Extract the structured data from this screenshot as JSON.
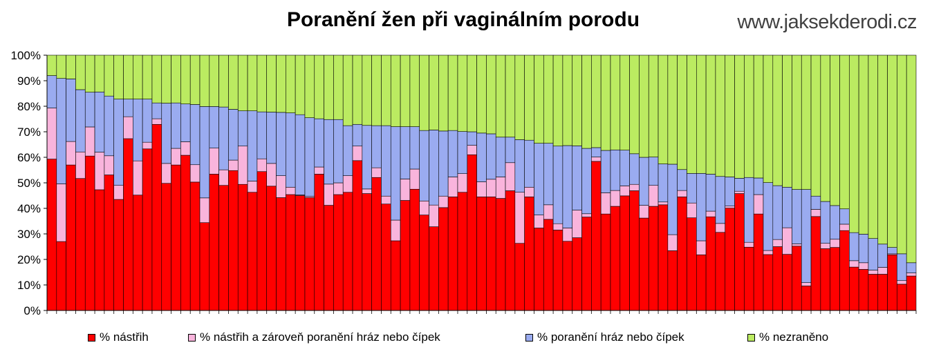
{
  "title": "Poranění žen při vaginálním porodu",
  "site": "www.jaksekderodi.cz",
  "legend": [
    {
      "label": "% nástřih",
      "color": "#ff0000"
    },
    {
      "label": "% nástřih a zároveň poranění hráz nebo čípek",
      "color": "#f9b4dc"
    },
    {
      "label": "% poranění hráz nebo čípek",
      "color": "#9aabf0"
    },
    {
      "label": "% nezraněno",
      "color": "#bbeb61"
    }
  ],
  "chart_data": {
    "type": "bar",
    "stacked": true,
    "ylim": [
      0,
      100
    ],
    "ytick_labels": [
      "0%",
      "10%",
      "20%",
      "30%",
      "40%",
      "50%",
      "60%",
      "70%",
      "80%",
      "90%",
      "100%"
    ],
    "grid": false,
    "legend_position": "bottom",
    "series": [
      {
        "name": "% nástřih",
        "color": "#ff0000",
        "values": [
          59.3,
          27,
          57,
          51.7,
          60.5,
          47.3,
          53.1,
          43.5,
          67.3,
          45.2,
          63.3,
          72.9,
          49.8,
          57,
          60.8,
          50.3,
          34.4,
          53.4,
          49,
          54.8,
          49.4,
          46.3,
          54.4,
          48.7,
          44.2,
          45.4,
          45,
          44.2,
          53.4,
          41.2,
          45.4,
          46.3,
          58.7,
          45.8,
          52.1,
          41.7,
          27.3,
          43.1,
          47.5,
          37.4,
          32.8,
          40.3,
          44.5,
          46.3,
          61,
          44.5,
          44.5,
          43.9,
          46.9,
          26.3,
          44.5,
          32.3,
          35.7,
          31.5,
          27.1,
          28.5,
          36.6,
          58.4,
          37.8,
          40.8,
          44.9,
          46.9,
          36.2,
          40.8,
          41.4,
          23.4,
          44.5,
          36.3,
          21.8,
          36.7,
          30.6,
          40.1,
          45.8,
          24.8,
          37.8,
          21.9,
          25,
          22,
          25.2,
          9.6,
          36.8,
          24.2,
          24.7,
          31.3,
          17,
          16.1,
          14.2,
          14.2,
          21.8,
          10.3,
          13.5
        ]
      },
      {
        "name": "% nástřih a zároveň poranění hráz nebo čípek",
        "color": "#f9b4dc",
        "values": [
          20,
          22.6,
          9.2,
          10.4,
          11.4,
          14.7,
          7.5,
          5.5,
          8.6,
          13.4,
          2.6,
          2.2,
          7.8,
          6.5,
          5.3,
          6.8,
          9.7,
          10.2,
          6.1,
          4.1,
          15,
          4.4,
          5,
          8.9,
          8.6,
          2.9,
          0.3,
          0.5,
          2.8,
          8.3,
          4.6,
          6.5,
          5.7,
          1.8,
          3.8,
          3.1,
          8.1,
          8.4,
          7.9,
          5.5,
          8.5,
          4.5,
          7.8,
          7.3,
          3.7,
          5.9,
          6.9,
          8.4,
          11,
          20,
          3.8,
          5.1,
          5.7,
          2.5,
          5.2,
          10.8,
          1.3,
          1.7,
          8.3,
          6.2,
          3.9,
          2.5,
          5,
          8.2,
          1.1,
          6.3,
          2.5,
          5.8,
          5.5,
          2.2,
          3.5,
          0.8,
          0.9,
          1.9,
          7.6,
          1.6,
          2.8,
          10.4,
          0.9,
          1.3,
          2.8,
          2.1,
          3.2,
          2.5,
          2.5,
          2.6,
          1.6,
          2.7,
          0.4,
          1.4,
          1.2
        ]
      },
      {
        "name": "% poranění hráz nebo čípek",
        "color": "#9aabf0",
        "values": [
          12.7,
          41.3,
          24.5,
          24.4,
          13.6,
          23.6,
          23.4,
          33.8,
          6.9,
          24.2,
          16.9,
          6.2,
          23.6,
          17.8,
          14.8,
          23.6,
          35.8,
          16.3,
          24.6,
          19.9,
          13.8,
          27.5,
          18.4,
          20.1,
          24.8,
          29.1,
          31.4,
          30.8,
          18.9,
          25.3,
          24.8,
          19.6,
          8.5,
          24.9,
          16.5,
          27.6,
          36.6,
          20.5,
          16.6,
          27.6,
          29.4,
          25.5,
          18.2,
          16.5,
          5.3,
          19.1,
          17.8,
          15.6,
          10,
          20.6,
          18.4,
          28.1,
          24.1,
          30.4,
          32.3,
          25.2,
          25.6,
          3.7,
          16.6,
          15.9,
          14,
          12,
          18.8,
          11.1,
          14.9,
          27.6,
          8.2,
          11.6,
          26.4,
          14.5,
          18.4,
          11.4,
          5.1,
          25.4,
          6.5,
          26.6,
          21.1,
          15.9,
          21.3,
          36.5,
          5.2,
          16.4,
          13.2,
          6,
          11,
          11.2,
          12.4,
          9.1,
          2.5,
          10.5,
          4
        ]
      },
      {
        "name": "% nezraněno",
        "color": "#bbeb61",
        "values": [
          8,
          9.1,
          9.3,
          13.5,
          14.5,
          14.4,
          16,
          17.2,
          17.2,
          17.2,
          17.2,
          18.7,
          18.8,
          18.7,
          19.1,
          19.3,
          20.1,
          20.1,
          20.3,
          21.2,
          21.8,
          21.8,
          22.2,
          22.3,
          22.4,
          22.6,
          23.3,
          24.5,
          24.9,
          25.2,
          25.2,
          27.6,
          27.1,
          27.5,
          27.6,
          27.6,
          28,
          28,
          28,
          29.5,
          29.3,
          29.7,
          29.5,
          29.9,
          30,
          30.5,
          30.8,
          32.1,
          32.1,
          33.1,
          33.3,
          34.5,
          34.5,
          35.6,
          35.4,
          35.5,
          36.5,
          36.2,
          37.3,
          37.1,
          37.2,
          38.6,
          40,
          39.9,
          42.6,
          42.7,
          44.8,
          46.3,
          46.3,
          46.6,
          47.5,
          47.7,
          48.2,
          47.9,
          48.1,
          49.9,
          51.1,
          51.7,
          52.6,
          52.6,
          55.2,
          57.3,
          58.9,
          60.2,
          69.5,
          70.1,
          71.8,
          74,
          75.3,
          77.8,
          81.3
        ]
      }
    ]
  }
}
